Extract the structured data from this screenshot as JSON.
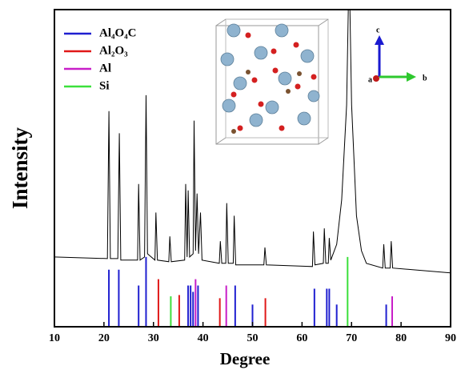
{
  "chart_data": {
    "type": "line",
    "x_label": "Degree",
    "y_label": "Intensity",
    "xlim": [
      10,
      90
    ],
    "ylim": [
      0,
      100
    ],
    "xticks": [
      10,
      20,
      30,
      40,
      50,
      60,
      70,
      80,
      90
    ],
    "line_color": "#000000",
    "x": [
      10,
      20.7,
      21,
      21.3,
      22.8,
      23.1,
      23.4,
      26.8,
      27,
      27.3,
      28.2,
      28.5,
      28.8,
      30.3,
      30.5,
      30.8,
      33.1,
      33.3,
      33.6,
      36.3,
      36.5,
      36.8,
      37,
      37.3,
      38,
      38.2,
      38.5,
      38.8,
      39.1,
      39.5,
      39.8,
      43.3,
      43.5,
      43.8,
      44.6,
      44.8,
      45.1,
      46.1,
      46.3,
      46.6,
      52.3,
      52.5,
      52.8,
      62.1,
      62.3,
      62.6,
      64.3,
      64.5,
      64.8,
      65.3,
      65.5,
      65.8,
      67,
      68,
      69,
      69.5,
      70,
      71,
      72,
      73,
      76.3,
      76.5,
      76.8,
      77.8,
      78,
      78.3,
      90
    ],
    "values": [
      22,
      21.5,
      68,
      21.5,
      21.5,
      61,
      21,
      21,
      45,
      21,
      22,
      73,
      23,
      21,
      36,
      21,
      20.5,
      28.5,
      20.5,
      21,
      45,
      22,
      43,
      22,
      23,
      65,
      24,
      42,
      23,
      36,
      21,
      20,
      27,
      20,
      20,
      39,
      20,
      20,
      35,
      19.5,
      19.5,
      25,
      19.5,
      19,
      30,
      19.5,
      20,
      31,
      20,
      20,
      28,
      21,
      26,
      40,
      70,
      115,
      70,
      35,
      24,
      20,
      18.5,
      26,
      18.5,
      18.5,
      27,
      18.5,
      17
    ],
    "reference_patterns": [
      {
        "name": "Al₄O₄C",
        "color": "#1f1fd0",
        "positions": [
          21,
          23,
          27,
          28.5,
          37,
          37.5,
          38,
          39,
          46.5,
          50,
          62.5,
          65,
          65.5,
          67,
          77
        ],
        "heights": [
          18,
          18,
          13,
          22,
          13,
          13,
          11,
          13,
          13,
          7,
          12,
          12,
          12,
          7,
          7
        ]
      },
      {
        "name": "Al₂O₃",
        "color": "#e01818",
        "positions": [
          31,
          35.2,
          43.4,
          52.6
        ],
        "heights": [
          15,
          10,
          9,
          9
        ]
      },
      {
        "name": "Al",
        "color": "#c81ec8",
        "positions": [
          38.5,
          44.7,
          78.2
        ],
        "heights": [
          15,
          13,
          9.6
        ]
      },
      {
        "name": "Si",
        "color": "#3ce03c",
        "positions": [
          33.5,
          69.2
        ],
        "heights": [
          9.6,
          22
        ]
      }
    ],
    "inset_axis_labels": [
      "c",
      "b",
      "a"
    ]
  }
}
